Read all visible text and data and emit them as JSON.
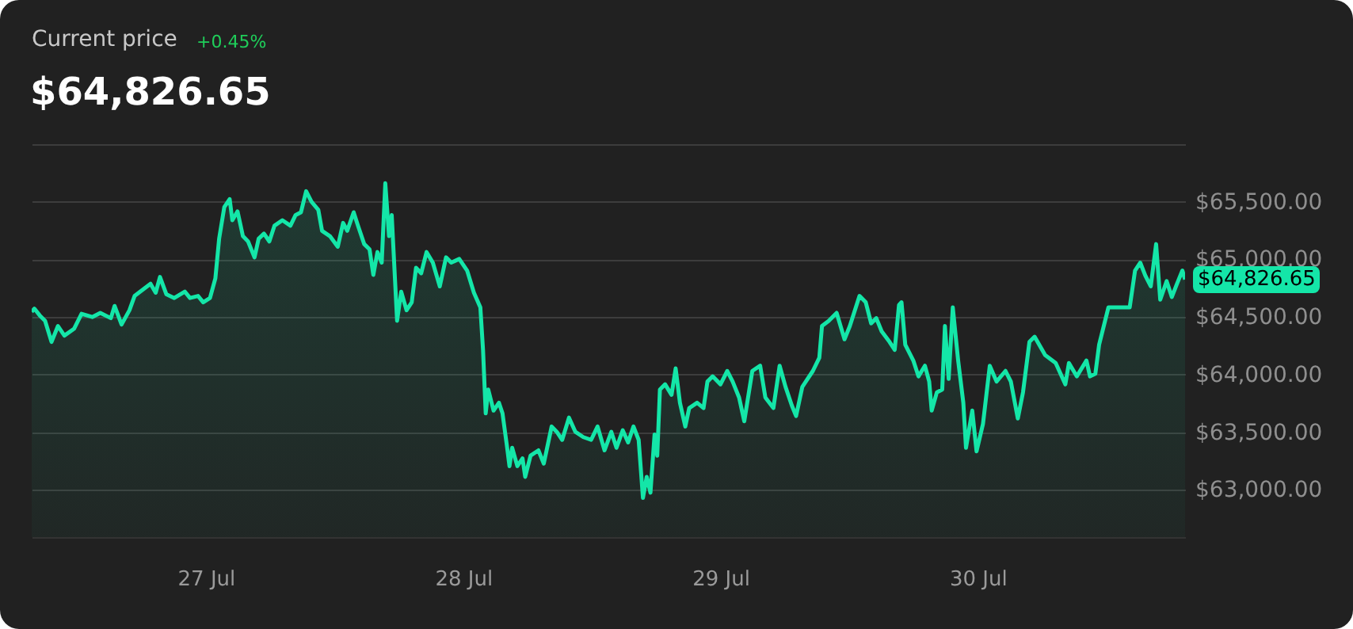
{
  "chart_data": {
    "type": "area",
    "title": "Current price",
    "subtitle": "$64,826.65",
    "annotations": [
      "+0.45%",
      {
        "text": "$64,826.65",
        "x": "--07-30T19:20",
        "y": 64826.65
      }
    ],
    "x": [
      "--07-26T07:45",
      "--07-26T08:00",
      "--07-26T08:30",
      "--07-26T09:00",
      "--07-26T09:36",
      "--07-26T10:12",
      "--07-26T10:48",
      "--07-26T11:42",
      "--07-26T12:24",
      "--07-26T13:24",
      "--07-26T14:09",
      "--07-26T15:08",
      "--07-26T15:29",
      "--07-26T16:08",
      "--07-26T16:52",
      "--07-26T17:21",
      "--07-26T18:50",
      "--07-26T19:19",
      "--07-26T19:43",
      "--07-26T20:19",
      "--07-26T21:03",
      "--07-26T22:02",
      "--07-26T22:31",
      "--07-26T23:16",
      "--07-26T23:45",
      "--07-27T00:23",
      "--07-27T00:53",
      "--07-27T01:14",
      "--07-27T01:43",
      "--07-27T02:13",
      "--07-27T02:28",
      "--07-27T02:57",
      "--07-27T03:27",
      "--07-27T03:56",
      "--07-27T04:32",
      "--07-27T04:55",
      "--07-27T05:25",
      "--07-27T05:55",
      "--07-27T06:24",
      "--07-27T07:08",
      "--07-27T07:53",
      "--07-27T08:22",
      "--07-27T08:52",
      "--07-27T09:21",
      "--07-27T09:51",
      "--07-27T10:29",
      "--07-27T10:50",
      "--07-27T11:34",
      "--07-27T12:18",
      "--07-27T12:48",
      "--07-27T13:11",
      "--07-27T13:47",
      "--07-27T14:11",
      "--07-27T14:46",
      "--07-27T15:16",
      "--07-27T15:37",
      "--07-27T16:00",
      "--07-27T16:24",
      "--07-27T16:44",
      "--07-27T17:05",
      "--07-27T17:20",
      "--07-27T17:50",
      "--07-27T18:13",
      "--07-27T18:43",
      "--07-27T19:12",
      "--07-27T19:36",
      "--07-27T20:05",
      "--07-27T20:35",
      "--07-27T21:10",
      "--07-27T21:49",
      "--07-27T22:24",
      "--07-27T22:53",
      "--07-27T23:38",
      "--07-28T00:22",
      "--07-28T01:00",
      "--07-28T01:36",
      "--07-28T01:51",
      "--07-28T02:06",
      "--07-28T02:20",
      "--07-28T02:50",
      "--07-28T03:20",
      "--07-28T03:40",
      "--07-28T04:04",
      "--07-28T04:19",
      "--07-28T04:34",
      "--07-28T05:03",
      "--07-28T05:32",
      "--07-28T05:47",
      "--07-28T06:17",
      "--07-28T07:01",
      "--07-28T07:31",
      "--07-28T08:15",
      "--07-28T08:44",
      "--07-28T09:14",
      "--07-28T09:52",
      "--07-28T10:28",
      "--07-28T11:12",
      "--07-28T11:56",
      "--07-28T12:32",
      "--07-28T13:11",
      "--07-28T13:49",
      "--07-28T14:18",
      "--07-28T14:53",
      "--07-28T15:23",
      "--07-28T15:53",
      "--07-28T16:22",
      "--07-28T16:46",
      "--07-28T17:07",
      "--07-28T17:28",
      "--07-28T17:51",
      "--07-28T18:06",
      "--07-28T18:21",
      "--07-28T18:50",
      "--07-28T19:26",
      "--07-28T19:49",
      "--07-28T20:13",
      "--07-28T20:43",
      "--07-28T21:05",
      "--07-28T21:49",
      "--07-28T22:25",
      "--07-28T22:47",
      "--07-28T23:16",
      "--07-29T00:00",
      "--07-29T00:38",
      "--07-29T01:08",
      "--07-29T01:44",
      "--07-29T02:13",
      "--07-29T02:58",
      "--07-29T03:42",
      "--07-29T04:11",
      "--07-29T04:56",
      "--07-29T05:31",
      "--07-29T06:04",
      "--07-29T06:39",
      "--07-29T07:03",
      "--07-29T07:38",
      "--07-29T08:37",
      "--07-29T09:13",
      "--07-29T09:28",
      "--07-29T10:06",
      "--07-29T10:50",
      "--07-29T11:34",
      "--07-29T12:04",
      "--07-29T12:58",
      "--07-29T13:33",
      "--07-29T14:03",
      "--07-29T14:32",
      "--07-29T15:02",
      "--07-29T15:46",
      "--07-29T16:15",
      "--07-29T16:39",
      "--07-29T16:53",
      "--07-29T17:14",
      "--07-29T17:59",
      "--07-29T18:28",
      "--07-29T19:04",
      "--07-29T19:28",
      "--07-29T19:42",
      "--07-29T20:11",
      "--07-29T20:41",
      "--07-29T20:56",
      "--07-29T21:17",
      "--07-29T21:40",
      "--07-29T22:10",
      "--07-29T22:39",
      "--07-29T22:54",
      "--07-29T23:29",
      "--07-29T23:53",
      "--07-30T00:29",
      "--07-30T01:07",
      "--07-30T01:45",
      "--07-30T02:35",
      "--07-30T03:05",
      "--07-30T03:44",
      "--07-30T04:13",
      "--07-30T04:49",
      "--07-30T05:18",
      "--07-30T06:17",
      "--07-30T07:16",
      "--07-30T08:10",
      "--07-30T08:30",
      "--07-30T09:14",
      "--07-30T10:08",
      "--07-30T10:28",
      "--07-30T10:58",
      "--07-30T11:19",
      "--07-30T12:11",
      "--07-30T14:10",
      "--07-30T14:40",
      "--07-30T15:09",
      "--07-30T15:38",
      "--07-30T16:08",
      "--07-30T16:38",
      "--07-30T17:01",
      "--07-30T17:37",
      "--07-30T18:06",
      "--07-30T18:35",
      "--07-30T19:05",
      "--07-30T19:20"
    ],
    "series": [
      {
        "color": "#14e6a8",
        "values": [
          64545,
          64573,
          64514,
          64467,
          64284,
          64422,
          64339,
          64398,
          64528,
          64500,
          64536,
          64490,
          64596,
          64435,
          64559,
          64683,
          64789,
          64711,
          64848,
          64697,
          64665,
          64720,
          64665,
          64683,
          64628,
          64665,
          64835,
          65179,
          65454,
          65523,
          65340,
          65417,
          65202,
          65156,
          65018,
          65179,
          65224,
          65156,
          65293,
          65340,
          65293,
          65385,
          65409,
          65592,
          65500,
          65431,
          65248,
          65202,
          65110,
          65317,
          65248,
          65409,
          65293,
          65133,
          65087,
          64866,
          65064,
          64972,
          65661,
          65202,
          65385,
          64467,
          64720,
          64559,
          64628,
          64927,
          64880,
          65064,
          64972,
          64766,
          65018,
          64972,
          65004,
          64903,
          64711,
          64583,
          64215,
          63664,
          63871,
          63688,
          63756,
          63664,
          63389,
          63206,
          63365,
          63206,
          63274,
          63113,
          63297,
          63343,
          63228,
          63550,
          63503,
          63434,
          63627,
          63503,
          63458,
          63434,
          63550,
          63343,
          63503,
          63365,
          63517,
          63412,
          63550,
          63434,
          62930,
          63113,
          62976,
          63481,
          63297,
          63871,
          63916,
          63825,
          64054,
          63756,
          63550,
          63710,
          63756,
          63710,
          63940,
          63985,
          63916,
          64032,
          63940,
          63802,
          63595,
          64032,
          64077,
          63802,
          63710,
          64077,
          63894,
          63733,
          63641,
          63894,
          64032,
          64146,
          64422,
          64467,
          64536,
          64307,
          64422,
          64683,
          64628,
          64445,
          64490,
          64376,
          64284,
          64215,
          64605,
          64628,
          64260,
          64123,
          63985,
          64077,
          63940,
          63688,
          63847,
          63871,
          64422,
          63963,
          64583,
          64123,
          63756,
          63365,
          63688,
          63334,
          63572,
          64077,
          63940,
          64032,
          63940,
          63619,
          63847,
          64284,
          64329,
          64170,
          64101,
          63916,
          64101,
          63985,
          64123,
          63985,
          64008,
          64260,
          64583,
          64583,
          64903,
          64972,
          64858,
          64766,
          65133,
          64651,
          64811,
          64674,
          64789,
          64903,
          64826.65
        ]
      }
    ],
    "xlim": [
      "--07-26T07:45",
      "--07-30T19:20"
    ],
    "xticks": [
      {
        "value": "--07-27",
        "label": "27 Jul"
      },
      {
        "value": "--07-28",
        "label": "28 Jul"
      },
      {
        "value": "--07-29",
        "label": "29 Jul"
      },
      {
        "value": "--07-30",
        "label": "30 Jul"
      }
    ],
    "ylim": [
      62590,
      66000
    ],
    "yticks": [
      {
        "value": 63000,
        "label": "$63,000.00"
      },
      {
        "value": 63500,
        "label": "$63,500.00"
      },
      {
        "value": 64000,
        "label": "$64,000.00"
      },
      {
        "value": 64500,
        "label": "$64,500.00"
      },
      {
        "value": 65000,
        "label": "$65,000.00"
      },
      {
        "value": 65500,
        "label": "$65,500.00"
      },
      {
        "value": 66000,
        "label": null
      }
    ],
    "grid": "y"
  }
}
